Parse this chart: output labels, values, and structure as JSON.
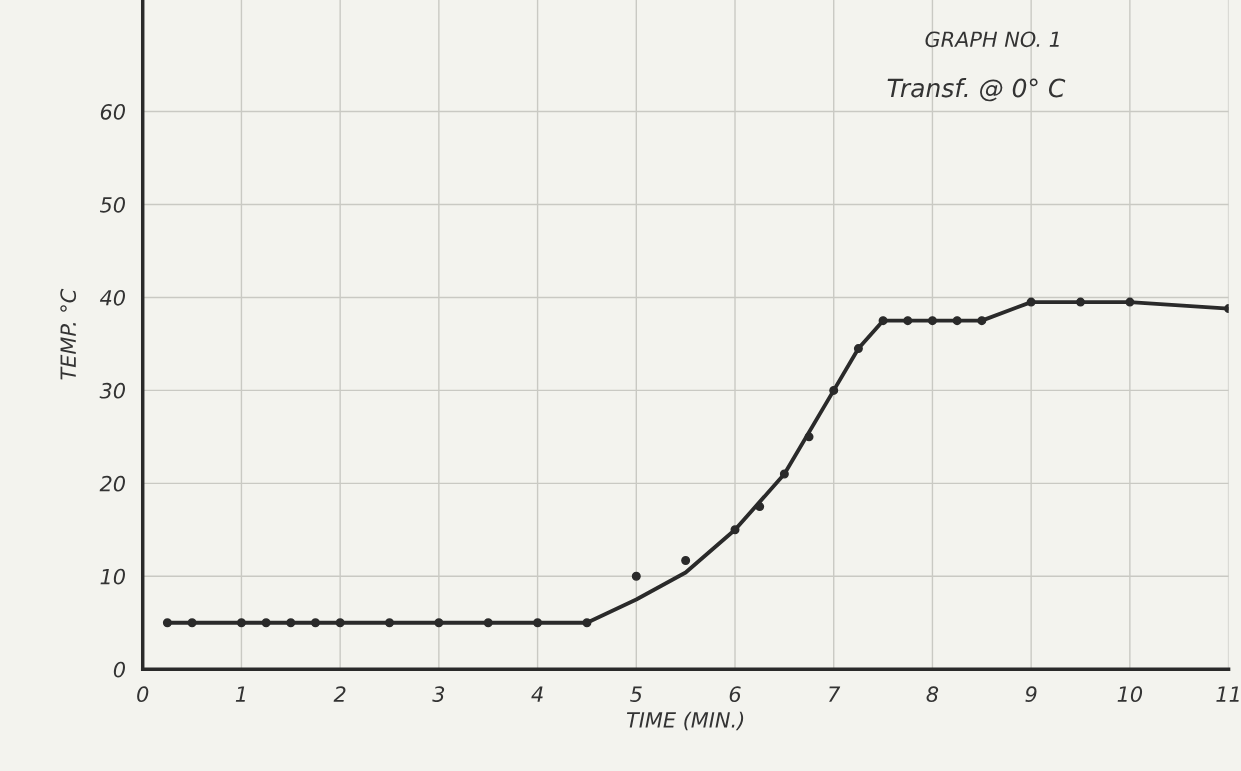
{
  "chart_data": {
    "type": "scatter",
    "title": "GRAPH NO. 1",
    "subtitle": "Transf. @ 0° C",
    "xlabel": "TIME (MIN.)",
    "ylabel": "TEMP. °C",
    "xlim": [
      0,
      11
    ],
    "xticks": [
      0,
      1,
      2,
      3,
      4,
      5,
      6,
      7,
      8,
      9,
      10,
      11
    ],
    "ylim": [
      0,
      72
    ],
    "yticks": [
      0,
      10,
      20,
      30,
      40,
      50,
      60
    ],
    "grid": true,
    "series": [
      {
        "marker": "circle",
        "color": "#2a2a2a",
        "x": [
          0.25,
          0.5,
          1,
          1.25,
          1.5,
          1.75,
          2,
          2.5,
          3,
          3.5,
          4,
          4.5,
          5,
          5.5,
          6,
          6.25,
          6.5,
          6.75,
          7,
          7.25,
          7.5,
          7.75,
          8,
          8.25,
          8.5,
          9,
          9.5,
          10,
          11
        ],
        "values": [
          5,
          5,
          5,
          5,
          5,
          5,
          5,
          5,
          5,
          5,
          5,
          5,
          10,
          11.7,
          15,
          17.5,
          21,
          25,
          30,
          34.5,
          37.5,
          37.5,
          37.5,
          37.5,
          37.5,
          39.5,
          39.5,
          39.5,
          38.8
        ]
      },
      {
        "type": "line",
        "marker": "none",
        "color": "#2a2a2a",
        "line_style": "solid",
        "x": [
          0.25,
          4.5,
          5,
          5.5,
          6,
          6.5,
          7,
          7.25,
          7.5,
          8.5,
          9,
          10,
          11
        ],
        "values": [
          5,
          5,
          7.5,
          10.4,
          15,
          21,
          30,
          34.5,
          37.5,
          37.5,
          39.5,
          39.5,
          38.8
        ]
      }
    ]
  }
}
